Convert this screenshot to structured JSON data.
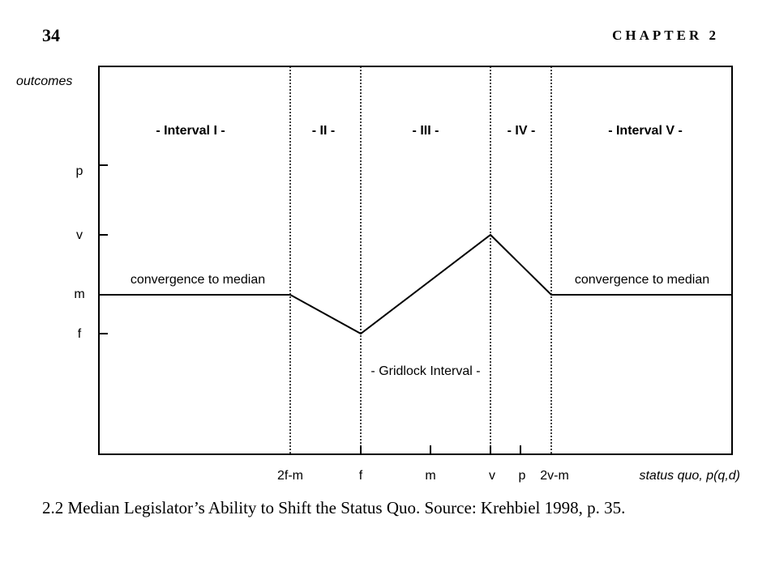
{
  "header": {
    "page_number": "34",
    "chapter": "CHAPTER 2"
  },
  "figure": {
    "y_axis_title": "outcomes",
    "x_axis_title": "status quo, p(q,d)",
    "interval_labels": [
      "- Interval I -",
      "- II -",
      "- III -",
      "- IV -",
      "- Interval V -"
    ],
    "y_ticks": [
      "p",
      "v",
      "m",
      "f"
    ],
    "x_ticks": [
      "2f-m",
      "f",
      "m",
      "v",
      "p",
      "2v-m"
    ],
    "annotations": {
      "left_convergence": "convergence to median",
      "right_convergence": "convergence to median",
      "gridlock": "- Gridlock Interval -"
    }
  },
  "caption": "2.2 Median Legislator’s Ability to Shift the Status Quo. Source: Krehbiel 1998, p. 35."
}
